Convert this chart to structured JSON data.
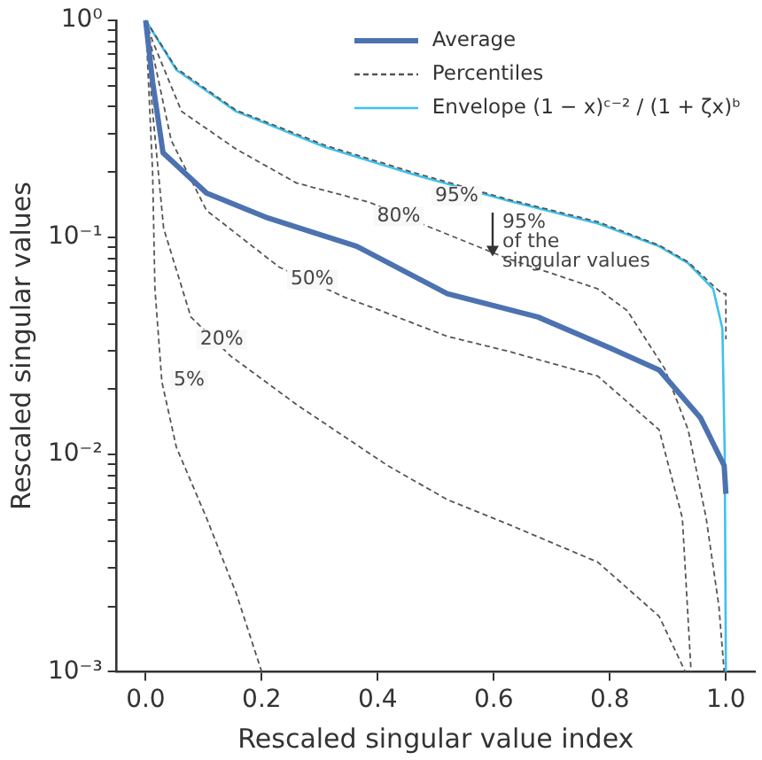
{
  "chart_data": {
    "type": "line",
    "xlabel": "Rescaled singular value index",
    "ylabel": "Rescaled singular values",
    "log": "y",
    "grid": false,
    "legend": "top right",
    "marker": "none",
    "xlim": [
      -0.05,
      1.05
    ],
    "xticks": [
      {
        "value": 0,
        "label": "0.0"
      },
      {
        "value": 0.2,
        "label": "0.2"
      },
      {
        "value": 0.4,
        "label": "0.4"
      },
      {
        "value": 0.6,
        "label": "0.6"
      },
      {
        "value": 0.8,
        "label": "0.8"
      },
      {
        "value": 1,
        "label": "1.0"
      }
    ],
    "ylim": [
      0.001,
      1
    ],
    "yticks": [
      {
        "value": 0.001,
        "label": "10⁻³"
      },
      {
        "value": 0.002,
        "label": null
      },
      {
        "value": 0.003,
        "label": null
      },
      {
        "value": 0.004,
        "label": null
      },
      {
        "value": 0.005,
        "label": null
      },
      {
        "value": 0.006,
        "label": null
      },
      {
        "value": 0.007,
        "label": null
      },
      {
        "value": 0.008,
        "label": null
      },
      {
        "value": 0.009,
        "label": null
      },
      {
        "value": 0.01,
        "label": "10⁻²"
      },
      {
        "value": 0.02,
        "label": null
      },
      {
        "value": 0.03,
        "label": null
      },
      {
        "value": 0.04,
        "label": null
      },
      {
        "value": 0.05,
        "label": null
      },
      {
        "value": 0.06,
        "label": null
      },
      {
        "value": 0.07,
        "label": null
      },
      {
        "value": 0.08,
        "label": null
      },
      {
        "value": 0.09,
        "label": null
      },
      {
        "value": 0.1,
        "label": "10⁻¹"
      },
      {
        "value": 0.2,
        "label": null
      },
      {
        "value": 0.3,
        "label": null
      },
      {
        "value": 0.4,
        "label": null
      },
      {
        "value": 0.5,
        "label": null
      },
      {
        "value": 0.6,
        "label": null
      },
      {
        "value": 0.7,
        "label": null
      },
      {
        "value": 0.8,
        "label": null
      },
      {
        "value": 0.9,
        "label": null
      },
      {
        "value": 1,
        "label": "10⁰"
      }
    ],
    "series": [
      {
        "name": "Average",
        "color": "#4c72b0",
        "line_style": "solid",
        "x": [
          0,
          0.012,
          0.03,
          0.105,
          0.21,
          0.364,
          0.52,
          0.676,
          0.8,
          0.885,
          0.956,
          0.997,
          1.0
        ],
        "values": [
          1,
          0.52,
          0.245,
          0.16,
          0.123,
          0.091,
          0.055,
          0.043,
          0.031,
          0.0245,
          0.0148,
          0.0089,
          0.0066
        ]
      },
      {
        "name": "Percentiles",
        "color": "#555555",
        "line_style": "dashed",
        "x": [
          0,
          0.053,
          0.156,
          0.31,
          0.467,
          0.623,
          0.779,
          0.885,
          0.935,
          0.978,
          0.994,
          1.0,
          1.0
        ],
        "values": [
          1,
          0.6,
          0.385,
          0.265,
          0.197,
          0.15,
          0.118,
          0.092,
          0.077,
          0.06,
          0.055,
          0.055,
          0.034
        ]
      },
      {
        "color": "#555555",
        "line_style": "dashed",
        "x": [
          0,
          0.012,
          0.062,
          0.156,
          0.26,
          0.386,
          0.495,
          0.623,
          0.779,
          0.83,
          0.894,
          0.935,
          0.966,
          0.988,
          0.997
        ],
        "values": [
          1,
          0.8,
          0.38,
          0.255,
          0.178,
          0.145,
          0.11,
          0.08,
          0.058,
          0.046,
          0.025,
          0.013,
          0.0051,
          0.002,
          0.001
        ]
      },
      {
        "color": "#555555",
        "line_style": "dashed",
        "x": [
          0,
          0.012,
          0.044,
          0.105,
          0.23,
          0.343,
          0.405,
          0.52,
          0.623,
          0.779,
          0.885,
          0.925,
          0.94
        ],
        "values": [
          1,
          0.71,
          0.28,
          0.133,
          0.073,
          0.053,
          0.046,
          0.035,
          0.03,
          0.023,
          0.013,
          0.0051,
          0.001
        ]
      },
      {
        "color": "#555555",
        "line_style": "dashed",
        "x": [
          0,
          0.012,
          0.031,
          0.078,
          0.146,
          0.26,
          0.417,
          0.52,
          0.623,
          0.779,
          0.885,
          0.93
        ],
        "values": [
          1,
          0.38,
          0.11,
          0.043,
          0.0285,
          0.017,
          0.0089,
          0.0062,
          0.0048,
          0.0032,
          0.0018,
          0.001
        ]
      },
      {
        "color": "#555555",
        "line_style": "dashed",
        "x": [
          0,
          0.012,
          0.016,
          0.028,
          0.053,
          0.105,
          0.156,
          0.2
        ],
        "values": [
          1,
          0.2,
          0.058,
          0.0216,
          0.0108,
          0.0051,
          0.0023,
          0.001
        ]
      },
      {
        "name": "Envelope (1 − x)ᶜ⁻² / (1 + ζx)ᵇ",
        "color": "#3ec1ec",
        "line_style": "solid",
        "x": [
          0,
          0.053,
          0.156,
          0.31,
          0.467,
          0.623,
          0.779,
          0.885,
          0.935,
          0.978,
          0.994,
          0.998,
          1.0
        ],
        "values": [
          1,
          0.59,
          0.38,
          0.26,
          0.193,
          0.148,
          0.116,
          0.091,
          0.076,
          0.058,
          0.038,
          0.01,
          0.001
        ]
      }
    ],
    "annotations": [
      {
        "text": "95%",
        "x": 0.536,
        "y": 0.155
      },
      {
        "text": "80%",
        "x": 0.436,
        "y": 0.125
      },
      {
        "text": "50%",
        "x": 0.287,
        "y": 0.064
      },
      {
        "text": "20%",
        "x": 0.131,
        "y": 0.034
      },
      {
        "text": "5%",
        "x": 0.075,
        "y": 0.022
      },
      "95%\nof the\nsingular values"
    ]
  }
}
